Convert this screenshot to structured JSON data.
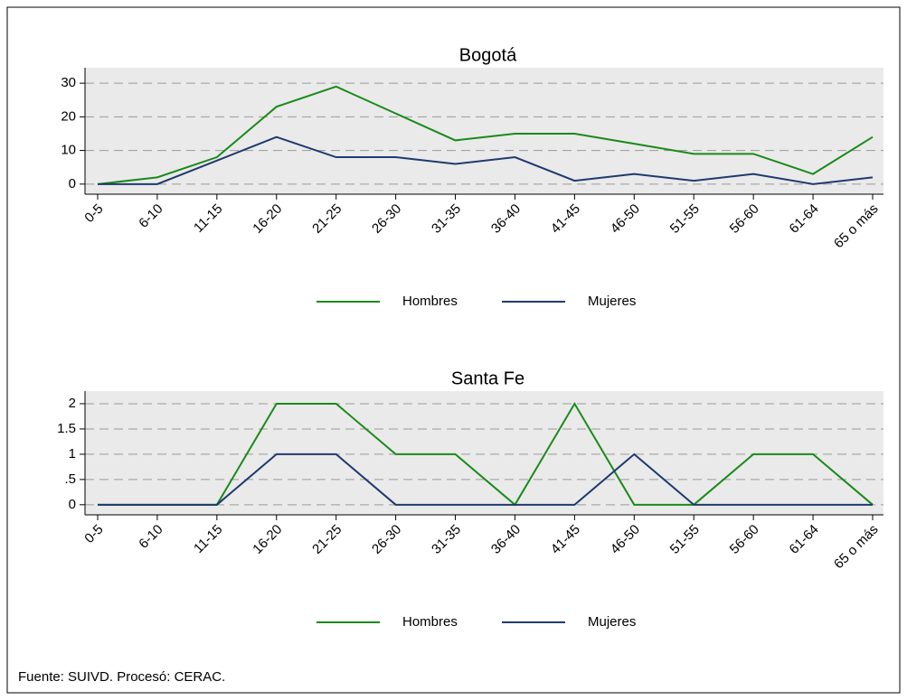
{
  "chart_data": [
    {
      "type": "line",
      "title": "Bogotá",
      "categories": [
        "0-5",
        "6-10",
        "11-15",
        "16-20",
        "21-25",
        "26-30",
        "31-35",
        "36-40",
        "41-45",
        "46-50",
        "51-55",
        "56-60",
        "61-64",
        "65 o más"
      ],
      "series": [
        {
          "name": "Hombres",
          "color": "#1a8a1a",
          "values": [
            0,
            2,
            8,
            23,
            29,
            21,
            13,
            15,
            15,
            12,
            9,
            9,
            3,
            14
          ]
        },
        {
          "name": "Mujeres",
          "color": "#1f3a6e",
          "values": [
            0,
            0,
            7,
            14,
            8,
            8,
            6,
            8,
            1,
            3,
            1,
            3,
            0,
            2
          ]
        }
      ],
      "ylim": [
        -3,
        34.6
      ],
      "yticks": [
        0,
        10,
        20,
        30
      ],
      "grid": true
    },
    {
      "type": "line",
      "title": "Santa Fe",
      "categories": [
        "0-5",
        "6-10",
        "11-15",
        "16-20",
        "21-25",
        "26-30",
        "31-35",
        "36-40",
        "41-45",
        "46-50",
        "51-55",
        "56-60",
        "61-64",
        "65 o más"
      ],
      "series": [
        {
          "name": "Hombres",
          "color": "#1a8a1a",
          "values": [
            0,
            0,
            0,
            2,
            2,
            1,
            1,
            0,
            2,
            0,
            0,
            1,
            1,
            0
          ]
        },
        {
          "name": "Mujeres",
          "color": "#1f3a6e",
          "values": [
            0,
            0,
            0,
            1,
            1,
            0,
            0,
            0,
            0,
            1,
            0,
            0,
            0,
            0
          ]
        }
      ],
      "ylim": [
        -0.2,
        2.25
      ],
      "yticks": [
        0,
        {
          "value": 0.5,
          "label": ".5"
        },
        1,
        1.5,
        2
      ],
      "grid": true
    }
  ],
  "source": "Fuente: SUIVD. Procesó: CERAC."
}
